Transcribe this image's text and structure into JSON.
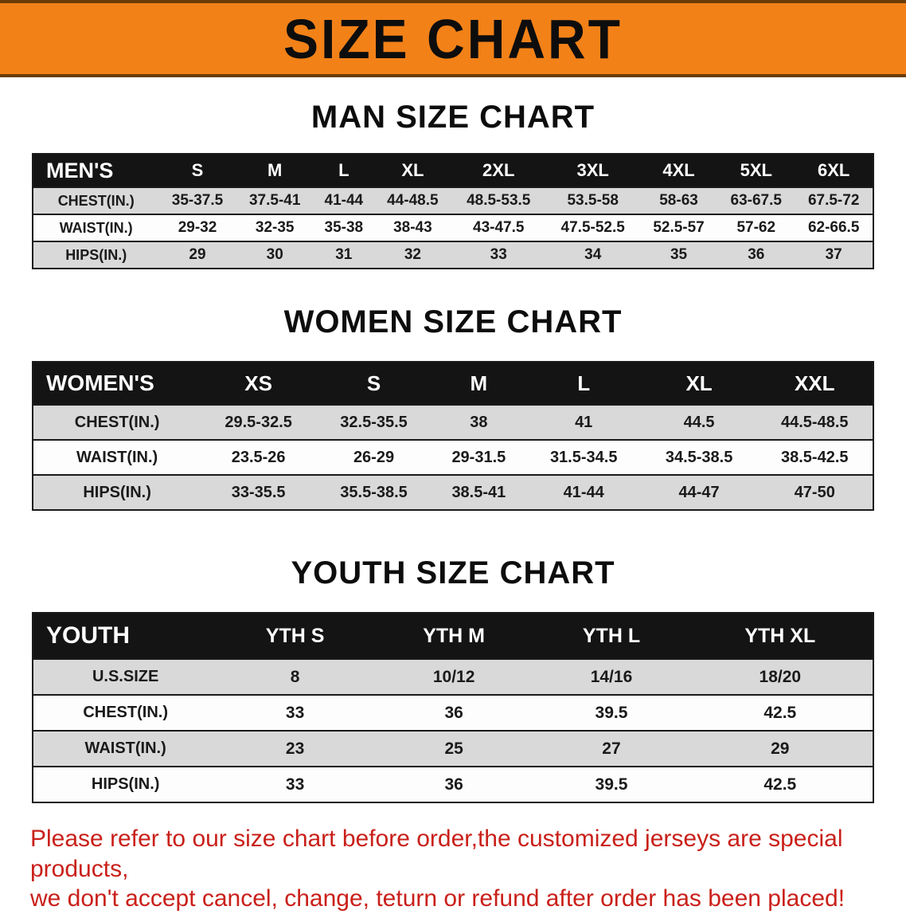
{
  "banner": {
    "title": "SIZE CHART",
    "bg_color": "#f28118",
    "text_color": "#0d0d0d"
  },
  "sections": [
    {
      "heading": "MAN SIZE CHART",
      "table": {
        "label": "MEN'S",
        "columns": [
          "S",
          "M",
          "L",
          "XL",
          "2XL",
          "3XL",
          "4XL",
          "5XL",
          "6XL"
        ],
        "rows": [
          {
            "label": "CHEST(IN.)",
            "values": [
              "35-37.5",
              "37.5-41",
              "41-44",
              "44-48.5",
              "48.5-53.5",
              "53.5-58",
              "58-63",
              "63-67.5",
              "67.5-72"
            ]
          },
          {
            "label": "WAIST(IN.)",
            "values": [
              "29-32",
              "32-35",
              "35-38",
              "38-43",
              "43-47.5",
              "47.5-52.5",
              "52.5-57",
              "57-62",
              "62-66.5"
            ]
          },
          {
            "label": "HIPS(IN.)",
            "values": [
              "29",
              "30",
              "31",
              "32",
              "33",
              "34",
              "35",
              "36",
              "37"
            ]
          }
        ]
      }
    },
    {
      "heading": "WOMEN SIZE CHART",
      "table": {
        "label": "WOMEN'S",
        "columns": [
          "XS",
          "S",
          "M",
          "L",
          "XL",
          "XXL"
        ],
        "rows": [
          {
            "label": "CHEST(IN.)",
            "values": [
              "29.5-32.5",
              "32.5-35.5",
              "38",
              "41",
              "44.5",
              "44.5-48.5"
            ]
          },
          {
            "label": "WAIST(IN.)",
            "values": [
              "23.5-26",
              "26-29",
              "29-31.5",
              "31.5-34.5",
              "34.5-38.5",
              "38.5-42.5"
            ]
          },
          {
            "label": "HIPS(IN.)",
            "values": [
              "33-35.5",
              "35.5-38.5",
              "38.5-41",
              "41-44",
              "44-47",
              "47-50"
            ]
          }
        ]
      }
    },
    {
      "heading": "YOUTH SIZE CHART",
      "table": {
        "label": "YOUTH",
        "columns": [
          "YTH S",
          "YTH M",
          "YTH L",
          "YTH XL"
        ],
        "rows": [
          {
            "label": "U.S.SIZE",
            "values": [
              "8",
              "10/12",
              "14/16",
              "18/20"
            ]
          },
          {
            "label": "CHEST(IN.)",
            "values": [
              "33",
              "36",
              "39.5",
              "42.5"
            ]
          },
          {
            "label": "WAIST(IN.)",
            "values": [
              "23",
              "25",
              "27",
              "29"
            ]
          },
          {
            "label": "HIPS(IN.)",
            "values": [
              "33",
              "36",
              "39.5",
              "42.5"
            ]
          }
        ]
      }
    }
  ],
  "disclaimer": {
    "line1": "Please refer to our size chart before order,the customized jerseys are special products,",
    "line2": "we don't accept cancel, change, teturn or refund after order has been placed!",
    "color": "#c9201a"
  }
}
